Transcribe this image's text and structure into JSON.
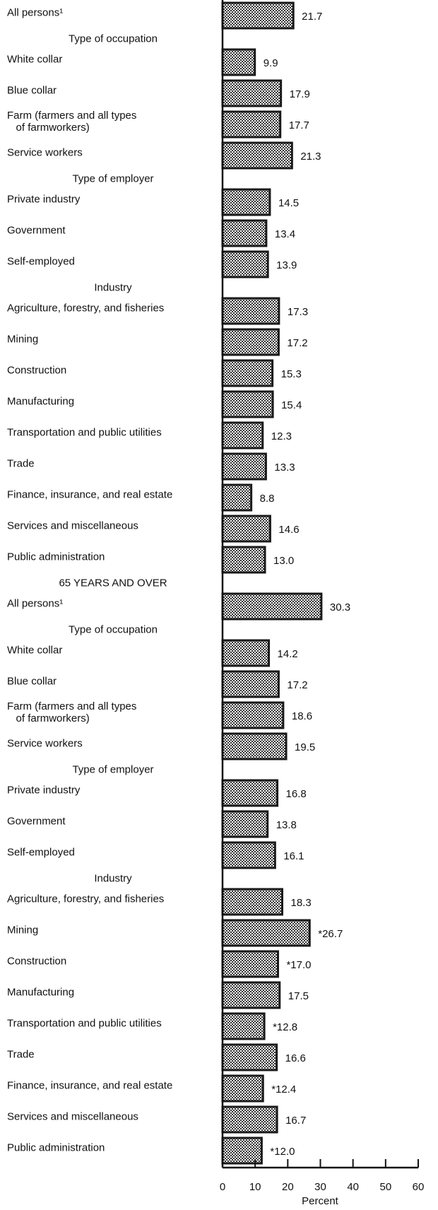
{
  "chart_data": {
    "type": "bar",
    "categories": [
      "All persons¹",
      "Type of occupation",
      "White collar",
      "Blue collar",
      "Farm (farmers and all types\n   of farmworkers)",
      "Service workers",
      "Type of employer",
      "Private industry",
      "Government",
      "Self-employed",
      "Industry",
      "Agriculture, forestry, and fisheries",
      "Mining",
      "Construction",
      "Manufacturing",
      "Transportation and public utilities",
      "Trade",
      "Finance, insurance, and real estate",
      "Services and miscellaneous",
      "Public administration",
      "65 YEARS AND OVER",
      "All persons¹",
      "Type of occupation",
      "White collar",
      "Blue collar",
      "Farm (farmers and all types\n   of farmworkers)",
      "Service workers",
      "Type of employer",
      "Private industry",
      "Government",
      "Self-employed",
      "Industry",
      "Agriculture, forestry, and fisheries",
      "Mining",
      "Construction",
      "Manufacturing",
      "Transportation and public utilities",
      "Trade",
      "Finance, insurance, and real estate",
      "Services and miscellaneous",
      "Public administration"
    ],
    "values": [
      21.7,
      null,
      9.9,
      17.9,
      17.7,
      21.3,
      null,
      14.5,
      13.4,
      13.9,
      null,
      17.3,
      17.2,
      15.3,
      15.4,
      12.3,
      13.3,
      8.8,
      14.6,
      13.0,
      null,
      30.3,
      null,
      14.2,
      17.2,
      18.6,
      19.5,
      null,
      16.8,
      13.8,
      16.1,
      null,
      18.3,
      26.7,
      17.0,
      17.5,
      12.8,
      16.6,
      12.4,
      16.7,
      12.0
    ],
    "value_labels": [
      "21.7",
      null,
      "9.9",
      "17.9",
      "17.7",
      "21.3",
      null,
      "14.5",
      "13.4",
      "13.9",
      null,
      "17.3",
      "17.2",
      "15.3",
      "15.4",
      "12.3",
      "13.3",
      "8.8",
      "14.6",
      "13.0",
      null,
      "30.3",
      null,
      "14.2",
      "17.2",
      "18.6",
      "19.5",
      null,
      "16.8",
      "13.8",
      "16.1",
      null,
      "18.3",
      "*26.7",
      "*17.0",
      "17.5",
      "*12.8",
      "16.6",
      "*12.4",
      "16.7",
      "*12.0"
    ],
    "color": "#1a1a1a",
    "xlim": [
      0,
      60
    ],
    "xticks": [
      0,
      10,
      20,
      30,
      40,
      50,
      60
    ],
    "x_label": "Percent"
  }
}
